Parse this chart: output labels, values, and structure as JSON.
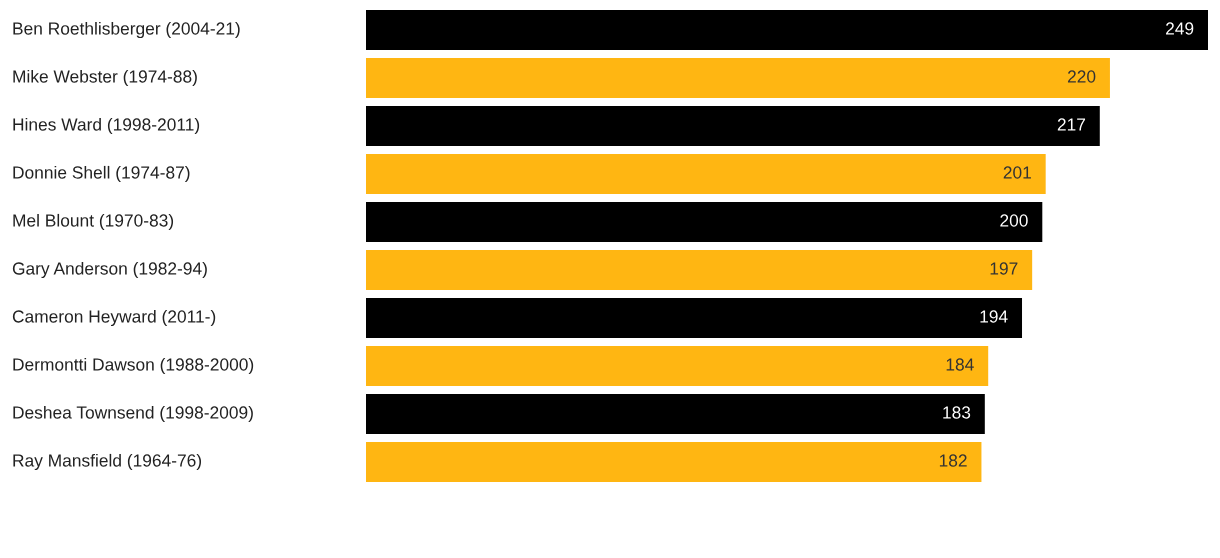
{
  "chart_data": {
    "type": "bar",
    "orientation": "horizontal",
    "categories": [
      "Ben Roethlisberger (2004-21)",
      "Mike Webster (1974-88)",
      "Hines Ward (1998-2011)",
      "Donnie Shell (1974-87)",
      "Mel Blount (1970-83)",
      "Gary Anderson (1982-94)",
      "Cameron Heyward (2011-)",
      "Dermontti Dawson (1988-2000)",
      "Deshea Townsend (1998-2009)",
      "Ray Mansfield (1964-76)"
    ],
    "values": [
      249,
      220,
      217,
      201,
      200,
      197,
      194,
      184,
      183,
      182
    ],
    "colors": [
      "#000000",
      "#ffb612",
      "#000000",
      "#ffb612",
      "#000000",
      "#ffb612",
      "#000000",
      "#ffb612",
      "#000000",
      "#ffb612"
    ],
    "data_labels": true
  }
}
